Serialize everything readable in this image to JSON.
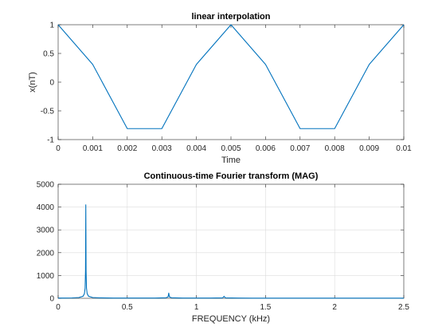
{
  "chart_data": [
    {
      "type": "line",
      "title": "linear interpolation",
      "xlabel": "Time",
      "ylabel": "x(nT)",
      "xlim": [
        0,
        0.01
      ],
      "ylim": [
        -1,
        1
      ],
      "grid": false,
      "xticks": [
        0,
        0.001,
        0.002,
        0.003,
        0.004,
        0.005,
        0.006,
        0.007,
        0.008,
        0.009,
        0.01
      ],
      "xtick_labels": [
        "0",
        "0.001",
        "0.002",
        "0.003",
        "0.004",
        "0.005",
        "0.006",
        "0.007",
        "0.008",
        "0.009",
        "0.01"
      ],
      "yticks": [
        -1,
        -0.5,
        0,
        0.5,
        1
      ],
      "ytick_labels": [
        "-1",
        "-0.5",
        "0",
        "0.5",
        "1"
      ],
      "series": [
        {
          "color": "#0072BD",
          "x": [
            0,
            0.001,
            0.002,
            0.003,
            0.004,
            0.005,
            0.006,
            0.007,
            0.008,
            0.009,
            0.01
          ],
          "y": [
            1,
            0.309,
            -0.809,
            -0.809,
            0.309,
            1,
            0.309,
            -0.809,
            -0.809,
            0.309,
            1
          ]
        }
      ]
    },
    {
      "type": "line",
      "title": "Continuous-time Fourier transform (MAG)",
      "xlabel": "FREQUENCY (kHz)",
      "ylabel": "",
      "xlim": [
        0,
        2.5
      ],
      "ylim": [
        0,
        5000
      ],
      "grid": true,
      "xticks": [
        0,
        0.5,
        1,
        1.5,
        2,
        2.5
      ],
      "xtick_labels": [
        "0",
        "0.5",
        "1",
        "1.5",
        "2",
        "2.5"
      ],
      "yticks": [
        0,
        1000,
        2000,
        3000,
        4000,
        5000
      ],
      "ytick_labels": [
        "0",
        "1000",
        "2000",
        "3000",
        "4000",
        "5000"
      ],
      "series": [
        {
          "color": "#0072BD",
          "x": [
            0,
            0.05,
            0.1,
            0.15,
            0.18,
            0.19,
            0.195,
            0.198,
            0.2,
            0.202,
            0.205,
            0.21,
            0.22,
            0.25,
            0.3,
            0.4,
            0.5,
            0.6,
            0.7,
            0.78,
            0.795,
            0.8,
            0.805,
            0.82,
            0.9,
            1.0,
            1.1,
            1.19,
            1.2,
            1.21,
            1.3,
            1.4,
            1.5,
            1.6,
            1.7,
            1.8,
            1.9,
            2.0,
            2.1,
            2.2,
            2.3,
            2.4,
            2.5
          ],
          "y": [
            10,
            12,
            18,
            35,
            90,
            200,
            450,
            1200,
            4100,
            1200,
            450,
            200,
            90,
            35,
            20,
            12,
            10,
            10,
            12,
            25,
            60,
            230,
            60,
            25,
            12,
            10,
            10,
            20,
            90,
            20,
            10,
            8,
            8,
            8,
            8,
            8,
            8,
            8,
            8,
            8,
            8,
            8,
            8
          ]
        }
      ]
    }
  ]
}
